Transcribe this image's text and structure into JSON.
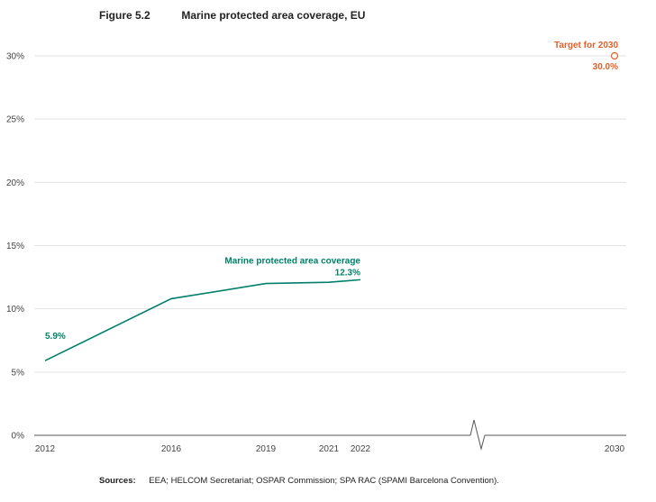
{
  "figure": {
    "number": "Figure 5.2",
    "title": "Marine protected area coverage, EU"
  },
  "sources": {
    "label": "Sources:",
    "text": "EEA; HELCOM Secretariat; OSPAR Commission; SPA RAC (SPAMI Barcelona Convention)."
  },
  "colors": {
    "series": "#00806a",
    "target": "#e0602a"
  },
  "chart_data": {
    "type": "line",
    "title": "Marine protected area coverage, EU",
    "x_axis_break": "between 2022 and 2030",
    "x_tick_labels": [
      "2012",
      "2016",
      "2019",
      "2021",
      "2022",
      "2030"
    ],
    "y_tick_labels": [
      "0%",
      "5%",
      "10%",
      "15%",
      "20%",
      "25%",
      "30%"
    ],
    "ylim": [
      0,
      30
    ],
    "grid": true,
    "series": [
      {
        "name": "Marine protected area coverage",
        "x": [
          2012,
          2016,
          2019,
          2021,
          2022
        ],
        "y": [
          5.9,
          10.8,
          12.0,
          12.1,
          12.3
        ],
        "start_label": "5.9%",
        "end_label": "12.3%"
      }
    ],
    "target": {
      "name": "Target for 2030",
      "x": 2030,
      "y": 30.0,
      "label": "30.0%"
    }
  }
}
